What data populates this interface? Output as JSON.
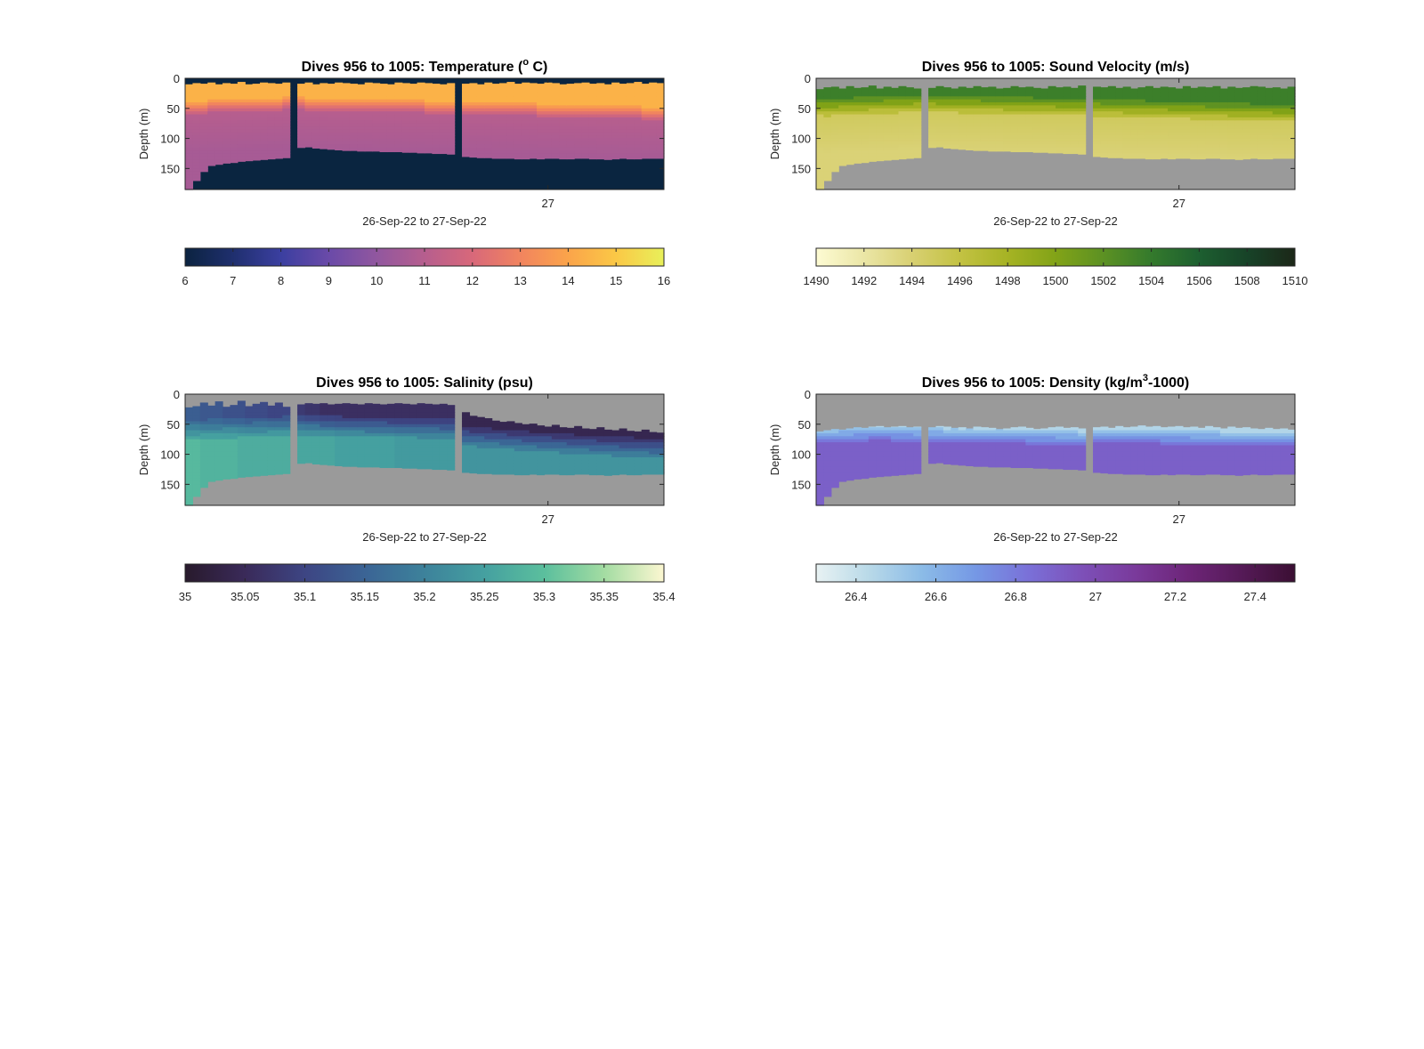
{
  "figure": {
    "background": "#ffffff",
    "mask_colors": {
      "temperature": "#0a2540",
      "default": "#9a9a9a"
    }
  },
  "chart_data": [
    {
      "id": "temperature",
      "type": "heatmap",
      "title_parts": [
        "Dives 956 to 1005: Temperature (",
        "o",
        " C)"
      ],
      "title_sup_index": 1,
      "ylabel": "Depth (m)",
      "xlabel": "26-Sep-22 to 27-Sep-22",
      "x_tick_labels": [
        "27"
      ],
      "y_tick_labels": [
        "0",
        "50",
        "100",
        "150"
      ],
      "y_ticks": [
        0,
        50,
        100,
        150
      ],
      "ylim": [
        0,
        185
      ],
      "y_reversed": true,
      "columns": 64,
      "x_tick_column": 48.5,
      "gap_columns": [
        14,
        36
      ],
      "bottom_depths": [
        185,
        170,
        155,
        145,
        143,
        141,
        140,
        138,
        137,
        136,
        135,
        134,
        133,
        132,
        132,
        115,
        114,
        116,
        117,
        118,
        119,
        120,
        120,
        121,
        121,
        121,
        122,
        122,
        122,
        123,
        123,
        124,
        124,
        125,
        125,
        126,
        126,
        130,
        131,
        132,
        132,
        133,
        133,
        133,
        134,
        134,
        133,
        134,
        133,
        133,
        134,
        134,
        133,
        133,
        134,
        134,
        135,
        134,
        133,
        134,
        134,
        133,
        133,
        133
      ],
      "surface_depths": [
        10,
        8,
        9,
        7,
        10,
        8,
        9,
        6,
        10,
        9,
        7,
        8,
        9,
        7,
        8,
        9,
        7,
        10,
        8,
        9,
        7,
        8,
        9,
        10,
        7,
        8,
        9,
        10,
        7,
        8,
        9,
        7,
        8,
        9,
        10,
        8,
        7,
        9,
        8,
        10,
        7,
        9,
        8,
        6,
        9,
        7,
        8,
        9,
        7,
        8,
        10,
        9,
        8,
        7,
        9,
        8,
        10,
        7,
        9,
        8,
        6,
        9,
        7,
        8
      ],
      "profile": {
        "type": "thermocline",
        "upper_value": 14.4,
        "lower_value": 11.0,
        "interface_depths": [
          48,
          49,
          48,
          47,
          47,
          46,
          46,
          45,
          45,
          44,
          44,
          43,
          43,
          42,
          41,
          42,
          43,
          43,
          43,
          44,
          44,
          44,
          45,
          45,
          45,
          46,
          46,
          46,
          46,
          47,
          47,
          47,
          48,
          48,
          48,
          48,
          49,
          49,
          50,
          50,
          50,
          51,
          51,
          51,
          52,
          52,
          52,
          53,
          53,
          53,
          54,
          54,
          55,
          55,
          55,
          56,
          56,
          56,
          57,
          57,
          57,
          58,
          58,
          58
        ],
        "thickness": 26,
        "deep_decrease": 0.4
      },
      "colorbar": {
        "range": [
          6,
          16
        ],
        "ticks": [
          6,
          7,
          8,
          9,
          10,
          11,
          12,
          13,
          14,
          15,
          16
        ],
        "tick_labels": [
          "6",
          "7",
          "8",
          "9",
          "10",
          "11",
          "12",
          "13",
          "14",
          "15",
          "16"
        ],
        "colors": [
          "#0b2340",
          "#1f2f6e",
          "#3b3fa0",
          "#6a4aa8",
          "#91579f",
          "#b65e8e",
          "#d8687a",
          "#f1845f",
          "#fba44a",
          "#fbc846",
          "#e8f05a"
        ]
      }
    },
    {
      "id": "sound_velocity",
      "type": "heatmap",
      "title_parts": [
        "Dives 956 to 1005: Sound Velocity (m/s)"
      ],
      "title_sup_index": -1,
      "ylabel": "Depth (m)",
      "xlabel": "26-Sep-22 to 27-Sep-22",
      "x_tick_labels": [
        "27"
      ],
      "y_tick_labels": [
        "0",
        "50",
        "100",
        "150"
      ],
      "y_ticks": [
        0,
        50,
        100,
        150
      ],
      "ylim": [
        0,
        185
      ],
      "y_reversed": true,
      "columns": 64,
      "x_tick_column": 48.5,
      "gap_columns": [
        14,
        36
      ],
      "bottom_depths": [
        185,
        170,
        155,
        145,
        143,
        141,
        140,
        138,
        137,
        136,
        135,
        134,
        133,
        132,
        132,
        115,
        114,
        116,
        117,
        118,
        119,
        120,
        120,
        121,
        121,
        121,
        122,
        122,
        122,
        123,
        123,
        124,
        124,
        125,
        125,
        126,
        126,
        130,
        131,
        132,
        132,
        133,
        133,
        133,
        134,
        134,
        133,
        134,
        133,
        133,
        134,
        134,
        133,
        133,
        134,
        134,
        135,
        134,
        133,
        134,
        134,
        133,
        133,
        133
      ],
      "surface_depths": [
        18,
        15,
        14,
        17,
        13,
        16,
        15,
        12,
        17,
        14,
        16,
        13,
        15,
        17,
        14,
        16,
        13,
        15,
        17,
        14,
        16,
        13,
        15,
        14,
        17,
        16,
        13,
        15,
        14,
        16,
        17,
        13,
        15,
        14,
        16,
        12,
        17,
        14,
        15,
        13,
        16,
        14,
        17,
        15,
        13,
        16,
        14,
        15,
        17,
        13,
        16,
        14,
        15,
        13,
        17,
        14,
        16,
        15,
        13,
        14,
        16,
        15,
        17,
        14
      ],
      "profile": {
        "type": "thermocline",
        "upper_value": 1503.6,
        "lower_value": 1494.8,
        "interface_depths": [
          48,
          49,
          48,
          47,
          47,
          46,
          46,
          45,
          45,
          44,
          44,
          43,
          43,
          42,
          41,
          42,
          43,
          43,
          43,
          44,
          44,
          44,
          45,
          45,
          45,
          46,
          46,
          46,
          46,
          47,
          47,
          47,
          48,
          48,
          48,
          48,
          49,
          49,
          50,
          50,
          50,
          51,
          51,
          51,
          52,
          52,
          52,
          53,
          53,
          53,
          54,
          54,
          55,
          55,
          55,
          56,
          56,
          56,
          57,
          57,
          57,
          58,
          58,
          58
        ],
        "thickness": 36,
        "deep_decrease": 1.0
      },
      "colorbar": {
        "range": [
          1490,
          1510
        ],
        "ticks": [
          1490,
          1492,
          1494,
          1496,
          1498,
          1500,
          1502,
          1504,
          1506,
          1508,
          1510
        ],
        "tick_labels": [
          "1490",
          "1492",
          "1494",
          "1496",
          "1498",
          "1500",
          "1502",
          "1504",
          "1506",
          "1508",
          "1510"
        ],
        "colors": [
          "#fdfbd3",
          "#ebe6a6",
          "#d8d072",
          "#c3c243",
          "#a6b324",
          "#82a317",
          "#5c9123",
          "#347a2c",
          "#1d5f30",
          "#174328",
          "#1c2718"
        ]
      }
    },
    {
      "id": "salinity",
      "type": "heatmap",
      "title_parts": [
        "Dives 956 to 1005: Salinity (psu)"
      ],
      "title_sup_index": -1,
      "ylabel": "Depth (m)",
      "xlabel": "26-Sep-22 to 27-Sep-22",
      "x_tick_labels": [
        "27"
      ],
      "y_tick_labels": [
        "0",
        "50",
        "100",
        "150"
      ],
      "y_ticks": [
        0,
        50,
        100,
        150
      ],
      "ylim": [
        0,
        185
      ],
      "y_reversed": true,
      "columns": 64,
      "x_tick_column": 48.5,
      "gap_columns": [
        14,
        36
      ],
      "bottom_depths": [
        185,
        170,
        155,
        145,
        143,
        141,
        140,
        138,
        137,
        136,
        135,
        134,
        133,
        132,
        132,
        115,
        114,
        116,
        117,
        118,
        119,
        120,
        120,
        121,
        121,
        121,
        122,
        122,
        122,
        123,
        123,
        124,
        124,
        125,
        125,
        126,
        126,
        130,
        131,
        132,
        132,
        133,
        133,
        133,
        134,
        134,
        133,
        134,
        133,
        133,
        134,
        134,
        133,
        133,
        134,
        134,
        135,
        134,
        133,
        134,
        134,
        133,
        133,
        133
      ],
      "surface_depths": [
        22,
        20,
        14,
        19,
        12,
        21,
        18,
        11,
        20,
        16,
        13,
        19,
        14,
        21,
        12,
        17,
        15,
        16,
        15,
        17,
        16,
        15,
        16,
        17,
        15,
        16,
        17,
        16,
        15,
        16,
        17,
        15,
        16,
        17,
        16,
        18,
        28,
        30,
        36,
        38,
        40,
        44,
        46,
        45,
        48,
        50,
        49,
        52,
        54,
        51,
        55,
        56,
        53,
        57,
        58,
        55,
        59,
        60,
        57,
        61,
        62,
        59,
        63,
        64
      ],
      "profile": {
        "type": "halocline",
        "surface_values": [
          35.14,
          35.14,
          35.13,
          35.13,
          35.13,
          35.12,
          35.12,
          35.12,
          35.11,
          35.11,
          35.11,
          35.1,
          35.1,
          35.1,
          35.1,
          35.08,
          35.07,
          35.07,
          35.06,
          35.06,
          35.06,
          35.06,
          35.06,
          35.06,
          35.06,
          35.06,
          35.06,
          35.06,
          35.06,
          35.06,
          35.06,
          35.06,
          35.06,
          35.06,
          35.06,
          35.06,
          35.06,
          35.04,
          35.04,
          35.04,
          35.04,
          35.04,
          35.04,
          35.04,
          35.04,
          35.04,
          35.04,
          35.04,
          35.04,
          35.04,
          35.04,
          35.04,
          35.04,
          35.04,
          35.04,
          35.04,
          35.04,
          35.04,
          35.04,
          35.04,
          35.04,
          35.04,
          35.04,
          35.04
        ],
        "deep_values": [
          35.29,
          35.29,
          35.28,
          35.28,
          35.28,
          35.28,
          35.28,
          35.27,
          35.27,
          35.27,
          35.27,
          35.27,
          35.27,
          35.27,
          35.26,
          35.26,
          35.26,
          35.26,
          35.26,
          35.26,
          35.25,
          35.25,
          35.25,
          35.25,
          35.25,
          35.25,
          35.25,
          35.25,
          35.24,
          35.24,
          35.24,
          35.24,
          35.24,
          35.24,
          35.24,
          35.24,
          35.24,
          35.23,
          35.23,
          35.23,
          35.23,
          35.23,
          35.23,
          35.23,
          35.23,
          35.23,
          35.23,
          35.23,
          35.23,
          35.23,
          35.23,
          35.23,
          35.23,
          35.23,
          35.23,
          35.23,
          35.23,
          35.23,
          35.23,
          35.23,
          35.23,
          35.23,
          35.23,
          35.23
        ],
        "interface_depths": [
          60,
          60,
          59,
          58,
          58,
          57,
          57,
          56,
          56,
          55,
          55,
          54,
          54,
          53,
          53,
          52,
          52,
          52,
          53,
          53,
          53,
          54,
          54,
          54,
          55,
          55,
          55,
          56,
          56,
          56,
          56,
          57,
          57,
          57,
          58,
          58,
          62,
          70,
          71,
          72,
          73,
          74,
          75,
          76,
          77,
          78,
          79,
          80,
          80,
          81,
          82,
          83,
          84,
          84,
          85,
          86,
          86,
          87,
          88,
          88,
          89,
          89,
          90,
          90
        ],
        "thickness": 40
      },
      "colorbar": {
        "range": [
          35,
          35.4
        ],
        "ticks": [
          35,
          35.05,
          35.1,
          35.15,
          35.2,
          35.25,
          35.3,
          35.35,
          35.4
        ],
        "tick_labels": [
          "35",
          "35.05",
          "35.1",
          "35.15",
          "35.2",
          "35.25",
          "35.3",
          "35.35",
          "35.4"
        ],
        "colors": [
          "#281a2c",
          "#3a2a59",
          "#3d4583",
          "#3b6495",
          "#3d829b",
          "#45a0a0",
          "#5bbf9d",
          "#a3dca2",
          "#fcf7d1"
        ]
      }
    },
    {
      "id": "density",
      "type": "heatmap",
      "title_parts": [
        "Dives 956 to 1005: Density (kg/m",
        "3",
        "-1000)"
      ],
      "title_sup_index": 1,
      "ylabel": "Depth (m)",
      "xlabel": "26-Sep-22 to 27-Sep-22",
      "x_tick_labels": [
        "27"
      ],
      "y_tick_labels": [
        "0",
        "50",
        "100",
        "150"
      ],
      "y_ticks": [
        0,
        50,
        100,
        150
      ],
      "ylim": [
        0,
        185
      ],
      "y_reversed": true,
      "columns": 64,
      "x_tick_column": 48.5,
      "gap_columns": [
        14,
        36
      ],
      "bottom_depths": [
        185,
        170,
        155,
        145,
        143,
        141,
        140,
        138,
        137,
        136,
        135,
        134,
        133,
        132,
        132,
        115,
        114,
        116,
        117,
        118,
        119,
        120,
        120,
        121,
        121,
        121,
        122,
        122,
        122,
        123,
        123,
        124,
        124,
        125,
        125,
        126,
        126,
        130,
        131,
        132,
        132,
        133,
        133,
        133,
        134,
        134,
        133,
        134,
        133,
        133,
        134,
        134,
        133,
        133,
        134,
        134,
        135,
        134,
        133,
        134,
        134,
        133,
        133,
        133
      ],
      "surface_depths": [
        62,
        60,
        58,
        59,
        57,
        55,
        56,
        54,
        53,
        55,
        54,
        53,
        55,
        54,
        56,
        55,
        53,
        54,
        56,
        55,
        57,
        54,
        55,
        56,
        58,
        57,
        55,
        54,
        56,
        58,
        57,
        55,
        54,
        56,
        55,
        57,
        53,
        55,
        54,
        56,
        53,
        55,
        54,
        52,
        54,
        53,
        55,
        54,
        53,
        55,
        54,
        56,
        53,
        55,
        57,
        54,
        56,
        55,
        57,
        58,
        56,
        58,
        57,
        59
      ],
      "profile": {
        "type": "pycnocline",
        "upper_value": 26.45,
        "lower_value": 26.9,
        "interface_depths": [
          70,
          70,
          69,
          68,
          68,
          67,
          67,
          66,
          66,
          66,
          67,
          67,
          67,
          68,
          68,
          68,
          68,
          69,
          69,
          69,
          69,
          70,
          70,
          70,
          70,
          71,
          71,
          71,
          72,
          72,
          72,
          72,
          73,
          73,
          73,
          74,
          70,
          70,
          70,
          70,
          70,
          70,
          71,
          71,
          71,
          71,
          72,
          72,
          72,
          72,
          73,
          73,
          73,
          73,
          74,
          74,
          74,
          74,
          75,
          75,
          75,
          75,
          76,
          76
        ],
        "thickness": 28
      },
      "colorbar": {
        "range": [
          26.3,
          27.5
        ],
        "ticks": [
          26.4,
          26.6,
          26.8,
          27,
          27.2,
          27.4
        ],
        "tick_labels": [
          "26.4",
          "26.6",
          "26.8",
          "27",
          "27.2",
          "27.4"
        ],
        "colors": [
          "#e8f2f3",
          "#b8d9e8",
          "#8bbbe7",
          "#7598e5",
          "#7a70d8",
          "#7d50b8",
          "#7a3a9b",
          "#6d2578",
          "#551a57",
          "#3b0f33"
        ]
      }
    }
  ]
}
